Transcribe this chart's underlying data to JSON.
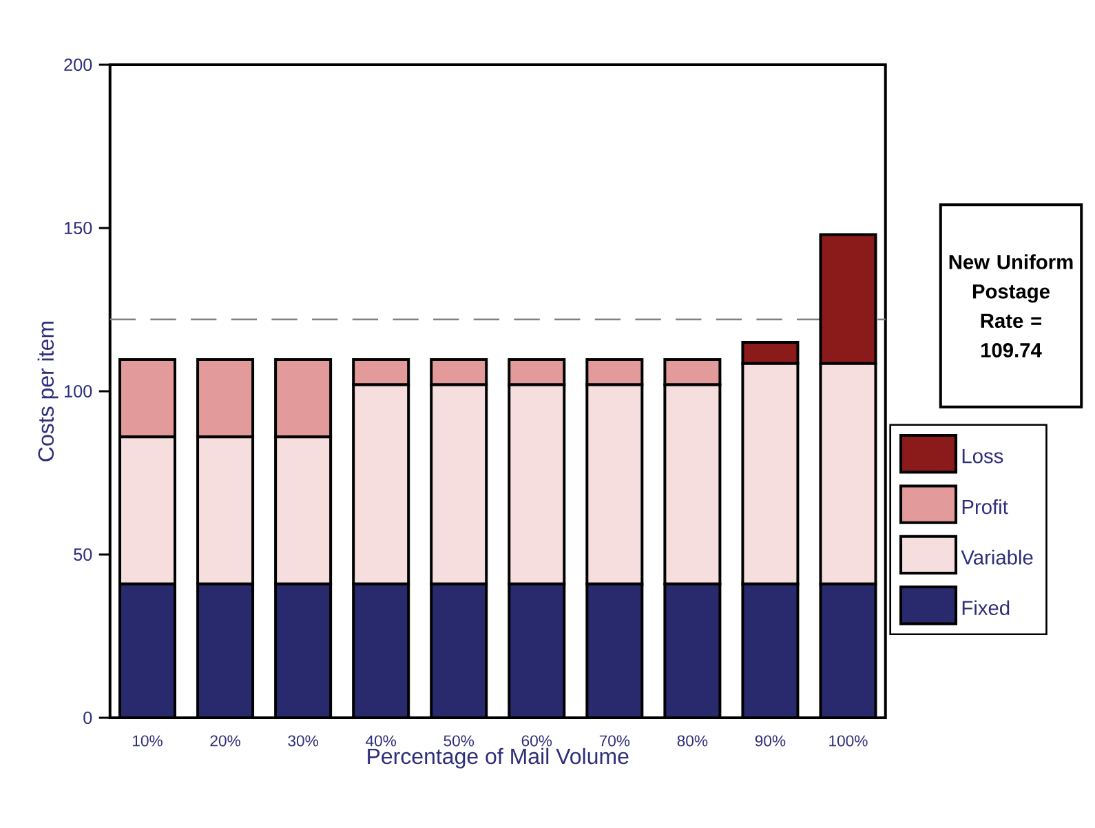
{
  "chart_data": {
    "type": "bar",
    "stacked": true,
    "xlabel": "Percentage of Mail Volume",
    "ylabel": "Costs per item",
    "categories": [
      "10%",
      "20%",
      "30%",
      "40%",
      "50%",
      "60%",
      "70%",
      "80%",
      "90%",
      "100%"
    ],
    "series": [
      {
        "name": "Fixed",
        "color": "#29296e",
        "values": [
          41,
          41,
          41,
          41,
          41,
          41,
          41,
          41,
          41,
          41
        ]
      },
      {
        "name": "Variable",
        "color": "#f6dede",
        "values": [
          45,
          45,
          45,
          61,
          61,
          61,
          61,
          61,
          67.5,
          67.5
        ]
      },
      {
        "name": "Profit",
        "color": "#e39a9a",
        "values": [
          23.7,
          23.7,
          23.7,
          7.7,
          7.7,
          7.7,
          7.7,
          7.7,
          0,
          0
        ]
      },
      {
        "name": "Loss",
        "color": "#8b1a1a",
        "values": [
          0,
          0,
          0,
          0,
          0,
          0,
          0,
          0,
          6.5,
          39.5
        ]
      }
    ],
    "ylim": [
      0,
      200
    ],
    "yticks": [
      0,
      50,
      100,
      150,
      200
    ],
    "ref_lines": [
      {
        "axis": "y",
        "value": 122,
        "color": "#808080",
        "line_style": "dashed"
      }
    ],
    "annotations": [
      "New Uniform Postage Rate = 109.74"
    ],
    "legend": "bottom right"
  }
}
